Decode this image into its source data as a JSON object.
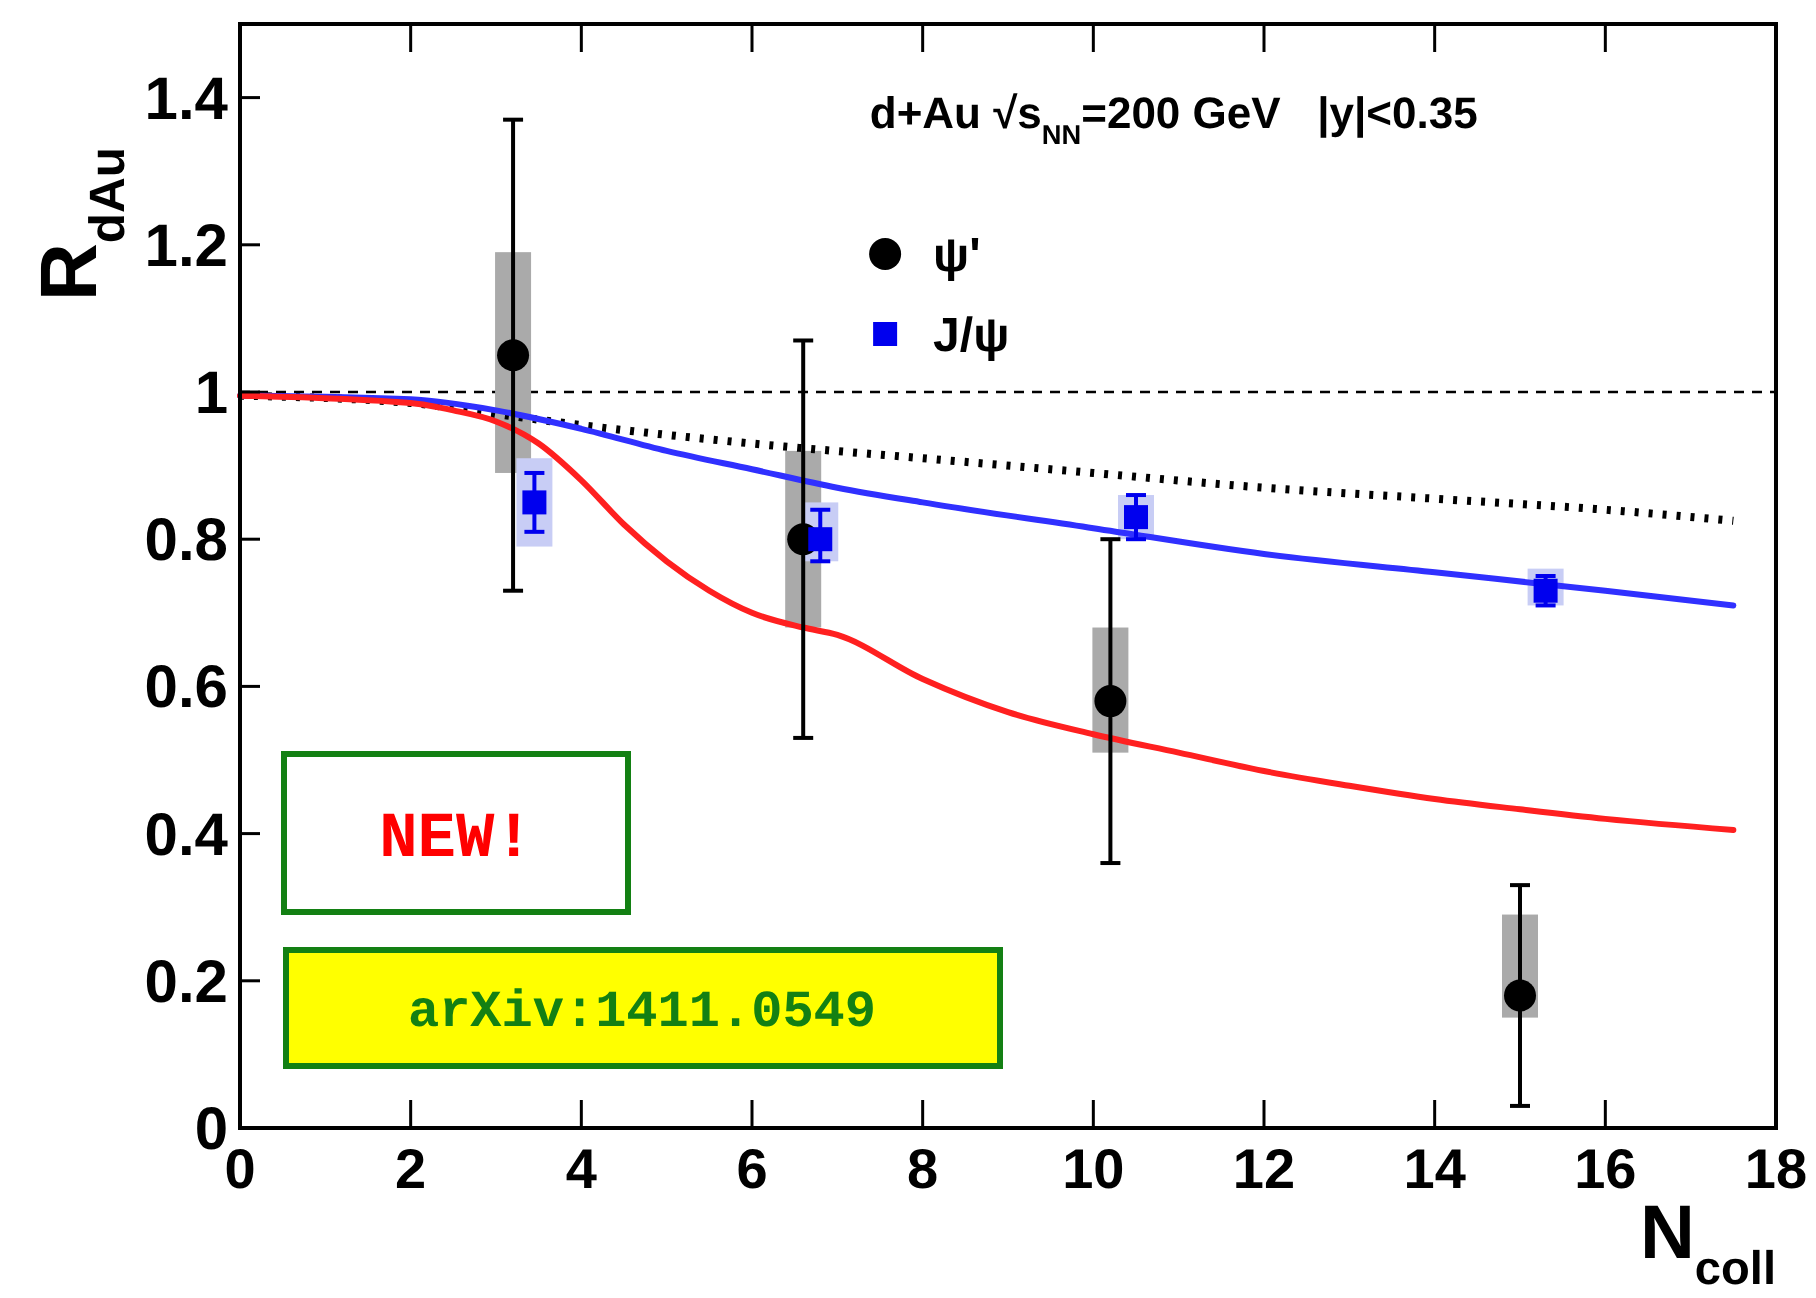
{
  "chart_data": {
    "type": "scatter",
    "xlabel": "N$_{coll}$",
    "ylabel": "R$_{dAu}$",
    "xlim": [
      0,
      18
    ],
    "xticks": [
      0,
      2,
      4,
      6,
      8,
      10,
      12,
      14,
      16,
      18
    ],
    "ylim": [
      0,
      1.5
    ],
    "yticks": [
      0,
      0.2,
      0.4,
      0.6,
      0.8,
      1,
      1.2,
      1.4
    ],
    "grid": false,
    "legend": "top right",
    "ref_lines": [
      {
        "axis": "y",
        "value": 1,
        "color": "#000000",
        "line_style": "dashed"
      }
    ],
    "annotations": [
      "d+Au √s$_{NN}$=200 GeV   |y|<0.35",
      "NEW!",
      "arXiv:1411.0549"
    ],
    "series": [
      {
        "type": "bar",
        "color": "#aaaaaa",
        "x": [
          3.2,
          6.6,
          10.2,
          15.0
        ],
        "base": [
          0.89,
          0.68,
          0.51,
          0.15
        ],
        "values": [
          0.3,
          0.24,
          0.17,
          0.14
        ]
      },
      {
        "type": "bar",
        "color": "#c8cdf5",
        "x": [
          3.45,
          6.8,
          10.5,
          15.3
        ],
        "base": [
          0.79,
          0.77,
          0.8,
          0.71
        ],
        "values": [
          0.12,
          0.08,
          0.06,
          0.05
        ]
      },
      {
        "type": "line",
        "color": "#000000",
        "line_style": "dotted",
        "marker": "none",
        "x": [
          0,
          2,
          3,
          4,
          6,
          8,
          10,
          12,
          14,
          16,
          17.5
        ],
        "values": [
          0.995,
          0.985,
          0.97,
          0.955,
          0.93,
          0.91,
          0.89,
          0.87,
          0.855,
          0.84,
          0.825
        ]
      },
      {
        "type": "line",
        "color": "#3030ff",
        "line_style": "solid",
        "marker": "none",
        "x": [
          0,
          2,
          3,
          4,
          5,
          6,
          7,
          8,
          10,
          12,
          14,
          16,
          17.5
        ],
        "values": [
          0.995,
          0.99,
          0.975,
          0.95,
          0.92,
          0.895,
          0.87,
          0.85,
          0.815,
          0.78,
          0.755,
          0.73,
          0.71
        ]
      },
      {
        "type": "line",
        "color": "#ff2020",
        "line_style": "solid",
        "marker": "none",
        "x": [
          0,
          2,
          2.5,
          3,
          3.5,
          4,
          4.5,
          5,
          5.5,
          6,
          6.6,
          7,
          8,
          9,
          10,
          11,
          12,
          13,
          14,
          15,
          16,
          17.5
        ],
        "values": [
          0.995,
          0.985,
          0.975,
          0.96,
          0.93,
          0.88,
          0.82,
          0.77,
          0.73,
          0.7,
          0.68,
          0.67,
          0.61,
          0.565,
          0.535,
          0.51,
          0.485,
          0.465,
          0.447,
          0.433,
          0.42,
          0.405
        ]
      },
      {
        "name": "ψ'",
        "color": "#000000",
        "marker": "circle",
        "x": [
          3.2,
          6.6,
          10.2,
          15.0
        ],
        "values": [
          1.05,
          0.8,
          0.58,
          0.18
        ],
        "errors": [
          [
            0.73,
            1.37
          ],
          [
            0.53,
            1.07
          ],
          [
            0.36,
            0.8
          ],
          [
            0.03,
            0.33
          ]
        ]
      },
      {
        "name": "J/ψ",
        "color": "#0000ee",
        "marker": "square",
        "x": [
          3.45,
          6.8,
          10.5,
          15.3
        ],
        "values": [
          0.85,
          0.8,
          0.83,
          0.73
        ],
        "errors": [
          [
            0.81,
            0.89
          ],
          [
            0.77,
            0.84
          ],
          [
            0.8,
            0.86
          ],
          [
            0.71,
            0.75
          ]
        ]
      }
    ]
  }
}
